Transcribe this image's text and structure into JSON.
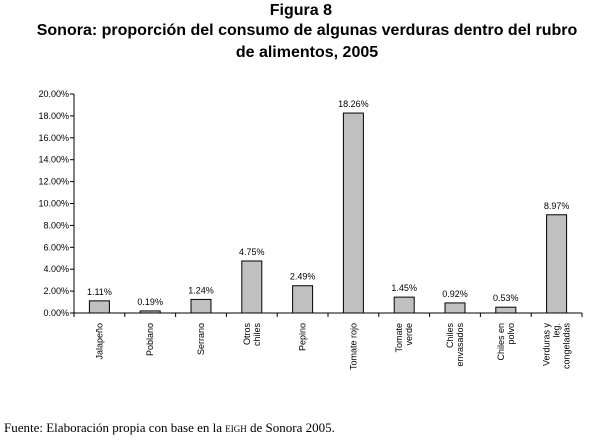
{
  "figure_label": "Figura 8",
  "title_line1": "Sonora: proporción del consumo de algunas verduras dentro del rubro",
  "title_line2": "de alimentos, 2005",
  "source": {
    "prefix": "Fuente: Elaboración propia con base en la",
    "acronym": "eigh",
    "suffix": "de Sonora 2005."
  },
  "chart_data": {
    "type": "bar",
    "title": "Sonora: proporción del consumo de algunas verduras dentro del rubro de alimentos, 2005",
    "categories": [
      [
        "Jalapeño"
      ],
      [
        "Poblano"
      ],
      [
        "Serrano"
      ],
      [
        "Otros",
        "chiles"
      ],
      [
        "Pepino"
      ],
      [
        "Tomate rojo"
      ],
      [
        "Tomate",
        "verde"
      ],
      [
        "Chiles",
        "envasados"
      ],
      [
        "Chiles en",
        "polvo"
      ],
      [
        "Verduras y",
        "leg.",
        "congeladas"
      ]
    ],
    "values": [
      1.11,
      0.19,
      1.24,
      4.75,
      2.49,
      18.26,
      1.45,
      0.92,
      0.53,
      8.97
    ],
    "value_labels": [
      "1.11%",
      "0.19%",
      "1.24%",
      "4.75%",
      "2.49%",
      "18.26%",
      "1.45%",
      "0.92%",
      "0.53%",
      "8.97%"
    ],
    "ylim": [
      0,
      20
    ],
    "yticks": [
      "0.00%",
      "2.00%",
      "4.00%",
      "6.00%",
      "8.00%",
      "10.00%",
      "12.00%",
      "14.00%",
      "16.00%",
      "18.00%",
      "20.00%"
    ],
    "grid": false,
    "bar_color": "#c0c0c0",
    "bar_edge_color": "#000000"
  }
}
